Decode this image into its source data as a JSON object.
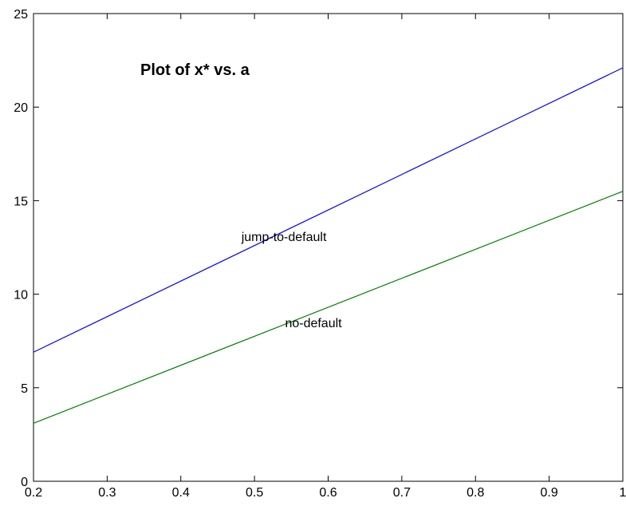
{
  "chart_data": {
    "type": "line",
    "title": "Plot of x* vs. a",
    "xlabel": "",
    "ylabel": "",
    "xlim": [
      0.2,
      1.0
    ],
    "ylim": [
      0,
      25
    ],
    "xticks": [
      0.2,
      0.3,
      0.4,
      0.5,
      0.6,
      0.7,
      0.8,
      0.9,
      1.0
    ],
    "yticks": [
      0,
      5,
      10,
      15,
      20,
      25
    ],
    "xtick_labels": [
      "0.2",
      "0.3",
      "0.4",
      "0.5",
      "0.6",
      "0.7",
      "0.8",
      "0.9",
      "1"
    ],
    "ytick_labels": [
      "0",
      "5",
      "10",
      "15",
      "20",
      "25"
    ],
    "grid": false,
    "legend": "none",
    "series": [
      {
        "label": "jump-to-default",
        "color": "#0000ff",
        "x": [
          0.2,
          1.0
        ],
        "y": [
          6.9,
          22.1
        ]
      },
      {
        "label": "no-default",
        "color": "#008000",
        "x": [
          0.2,
          1.0
        ],
        "y": [
          3.1,
          15.5
        ]
      }
    ],
    "annotations": [
      {
        "text": "jump-to-default",
        "x": 0.54,
        "y": 13.1
      },
      {
        "text": "no-default",
        "x": 0.58,
        "y": 8.5
      }
    ]
  }
}
